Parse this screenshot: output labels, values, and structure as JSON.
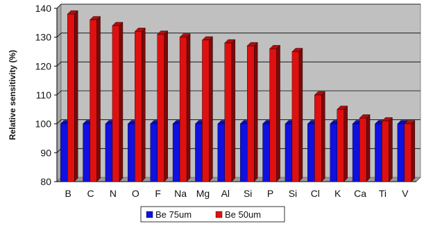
{
  "chart_data": {
    "type": "bar",
    "categories": [
      "B",
      "C",
      "N",
      "O",
      "F",
      "Na",
      "Mg",
      "Al",
      "Si",
      "P",
      "Si",
      "Cl",
      "K",
      "Ca",
      "Ti",
      "V"
    ],
    "series": [
      {
        "name": "Be 75um",
        "values": [
          100,
          100,
          100,
          100,
          100,
          100,
          100,
          100,
          100,
          100,
          100,
          100,
          100,
          100,
          100,
          100
        ]
      },
      {
        "name": "Be 50um",
        "values": [
          138,
          136,
          134,
          132,
          131,
          130,
          129,
          128,
          127,
          126,
          125,
          110,
          105,
          102,
          101,
          100
        ]
      }
    ],
    "title": "",
    "xlabel": "",
    "ylabel": "Relative sensitivity (%)",
    "ylim": [
      80,
      140
    ],
    "yticks": [
      80,
      90,
      100,
      110,
      120,
      130,
      140
    ],
    "grid": true,
    "legend_position": "bottom",
    "colors": {
      "series": [
        "#1010e0",
        "#e01010"
      ],
      "plot_background": "#c0c0c0",
      "gridline": "#000000"
    }
  }
}
